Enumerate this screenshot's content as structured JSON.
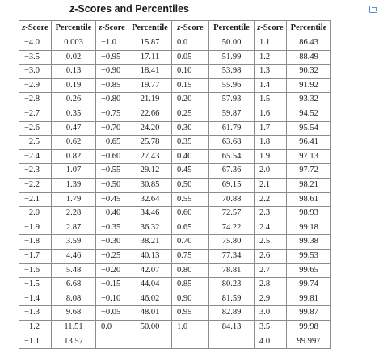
{
  "title": {
    "italic": "z",
    "text": "-Scores and Percentiles"
  },
  "headers": [
    "z-Score",
    "Percentile",
    "z-Score",
    "Percentile",
    "z-Score",
    "Percentile",
    "z-Score",
    "Percentile"
  ],
  "rows": [
    [
      "−4.0",
      "0.003",
      "−1.0",
      "15.87",
      "0.0",
      "50.00",
      "1.1",
      "86.43"
    ],
    [
      "−3.5",
      "0.02",
      "−0.95",
      "17.11",
      "0.05",
      "51.99",
      "1.2",
      "88.49"
    ],
    [
      "−3.0",
      "0.13",
      "−0.90",
      "18.41",
      "0.10",
      "53.98",
      "1.3",
      "90.32"
    ],
    [
      "−2.9",
      "0.19",
      "−0.85",
      "19.77",
      "0.15",
      "55.96",
      "1.4",
      "91.92"
    ],
    [
      "−2.8",
      "0.26",
      "−0.80",
      "21.19",
      "0.20",
      "57.93",
      "1.5",
      "93.32"
    ],
    [
      "−2.7",
      "0.35",
      "−0.75",
      "22.66",
      "0.25",
      "59.87",
      "1.6",
      "94.52"
    ],
    [
      "−2.6",
      "0.47",
      "−0.70",
      "24.20",
      "0.30",
      "61.79",
      "1.7",
      "95.54"
    ],
    [
      "−2.5",
      "0.62",
      "−0.65",
      "25.78",
      "0.35",
      "63.68",
      "1.8",
      "96.41"
    ],
    [
      "−2.4",
      "0.82",
      "−0.60",
      "27.43",
      "0.40",
      "65.54",
      "1.9",
      "97.13"
    ],
    [
      "−2.3",
      "1.07",
      "−0.55",
      "29.12",
      "0.45",
      "67.36",
      "2.0",
      "97.72"
    ],
    [
      "−2.2",
      "1.39",
      "−0.50",
      "30.85",
      "0.50",
      "69.15",
      "2.1",
      "98.21"
    ],
    [
      "−2.1",
      "1.79",
      "−0.45",
      "32.64",
      "0.55",
      "70.88",
      "2.2",
      "98.61"
    ],
    [
      "−2.0",
      "2.28",
      "−0.40",
      "34.46",
      "0.60",
      "72.57",
      "2.3",
      "98.93"
    ],
    [
      "−1.9",
      "2.87",
      "−0.35",
      "36.32",
      "0.65",
      "74.22",
      "2.4",
      "99.18"
    ],
    [
      "−1.8",
      "3.59",
      "−0.30",
      "38.21",
      "0.70",
      "75.80",
      "2.5",
      "99.38"
    ],
    [
      "−1.7",
      "4.46",
      "−0.25",
      "40.13",
      "0.75",
      "77.34",
      "2.6",
      "99.53"
    ],
    [
      "−1.6",
      "5.48",
      "−0.20",
      "42.07",
      "0.80",
      "78.81",
      "2.7",
      "99.65"
    ],
    [
      "−1.5",
      "6.68",
      "−0.15",
      "44.04",
      "0.85",
      "80.23",
      "2.8",
      "99.74"
    ],
    [
      "−1.4",
      "8.08",
      "−0.10",
      "46.02",
      "0.90",
      "81.59",
      "2.9",
      "99.81"
    ],
    [
      "−1.3",
      "9.68",
      "−0.05",
      "48.01",
      "0.95",
      "82.89",
      "3.0",
      "99.87"
    ],
    [
      "−1.2",
      "11.51",
      "0.0",
      "50.00",
      "1.0",
      "84.13",
      "3.5",
      "99.98"
    ],
    [
      "−1.1",
      "13.57",
      "",
      "",
      "",
      "",
      "4.0",
      "99.997"
    ]
  ]
}
